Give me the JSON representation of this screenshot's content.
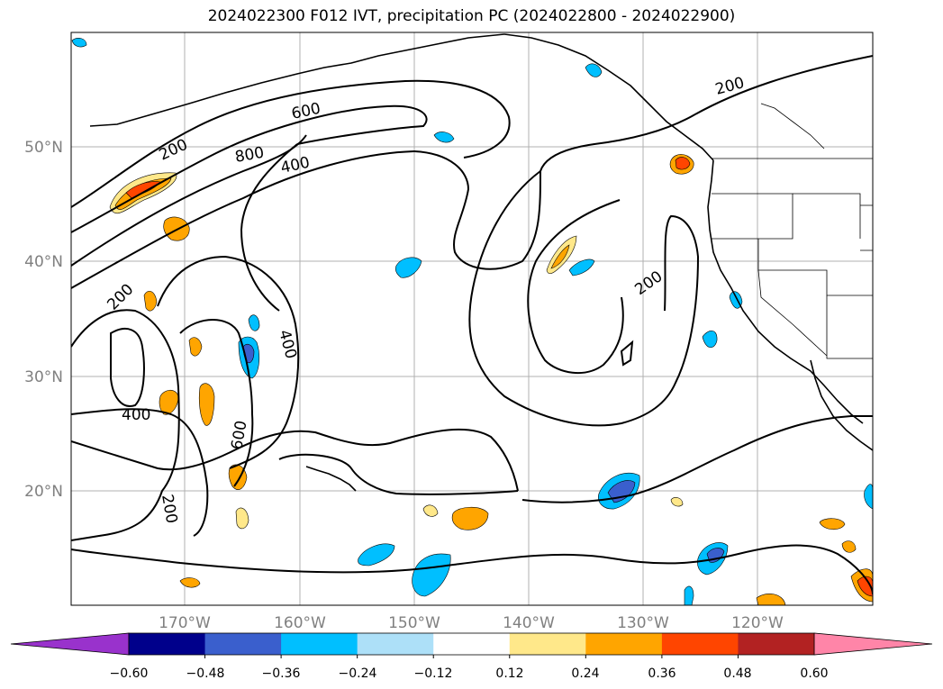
{
  "title": "2024022300 F012 IVT, precipitation PC (2024022800 - 2024022900)",
  "lat_labels": [
    "50°N",
    "40°N",
    "30°N",
    "20°N"
  ],
  "lon_labels": [
    "170°W",
    "160°W",
    "150°W",
    "140°W",
    "130°W",
    "120°W"
  ],
  "contour_labels": [
    "200",
    "600",
    "800",
    "400",
    "200",
    "400",
    "400",
    "600",
    "200",
    "200"
  ],
  "colorbar": {
    "tick_labels": [
      "−0.60",
      "−0.48",
      "−0.36",
      "−0.24",
      "−0.12",
      "0.12",
      "0.24",
      "0.36",
      "0.48",
      "0.60"
    ],
    "colors": [
      "#9932CC",
      "#00008B",
      "#3A5FCD",
      "#00BFFF",
      "#ADE0F8",
      "#FFFFFF",
      "#FFE88A",
      "#FFA500",
      "#FF4500",
      "#B22222",
      "#FF85A8"
    ]
  }
}
